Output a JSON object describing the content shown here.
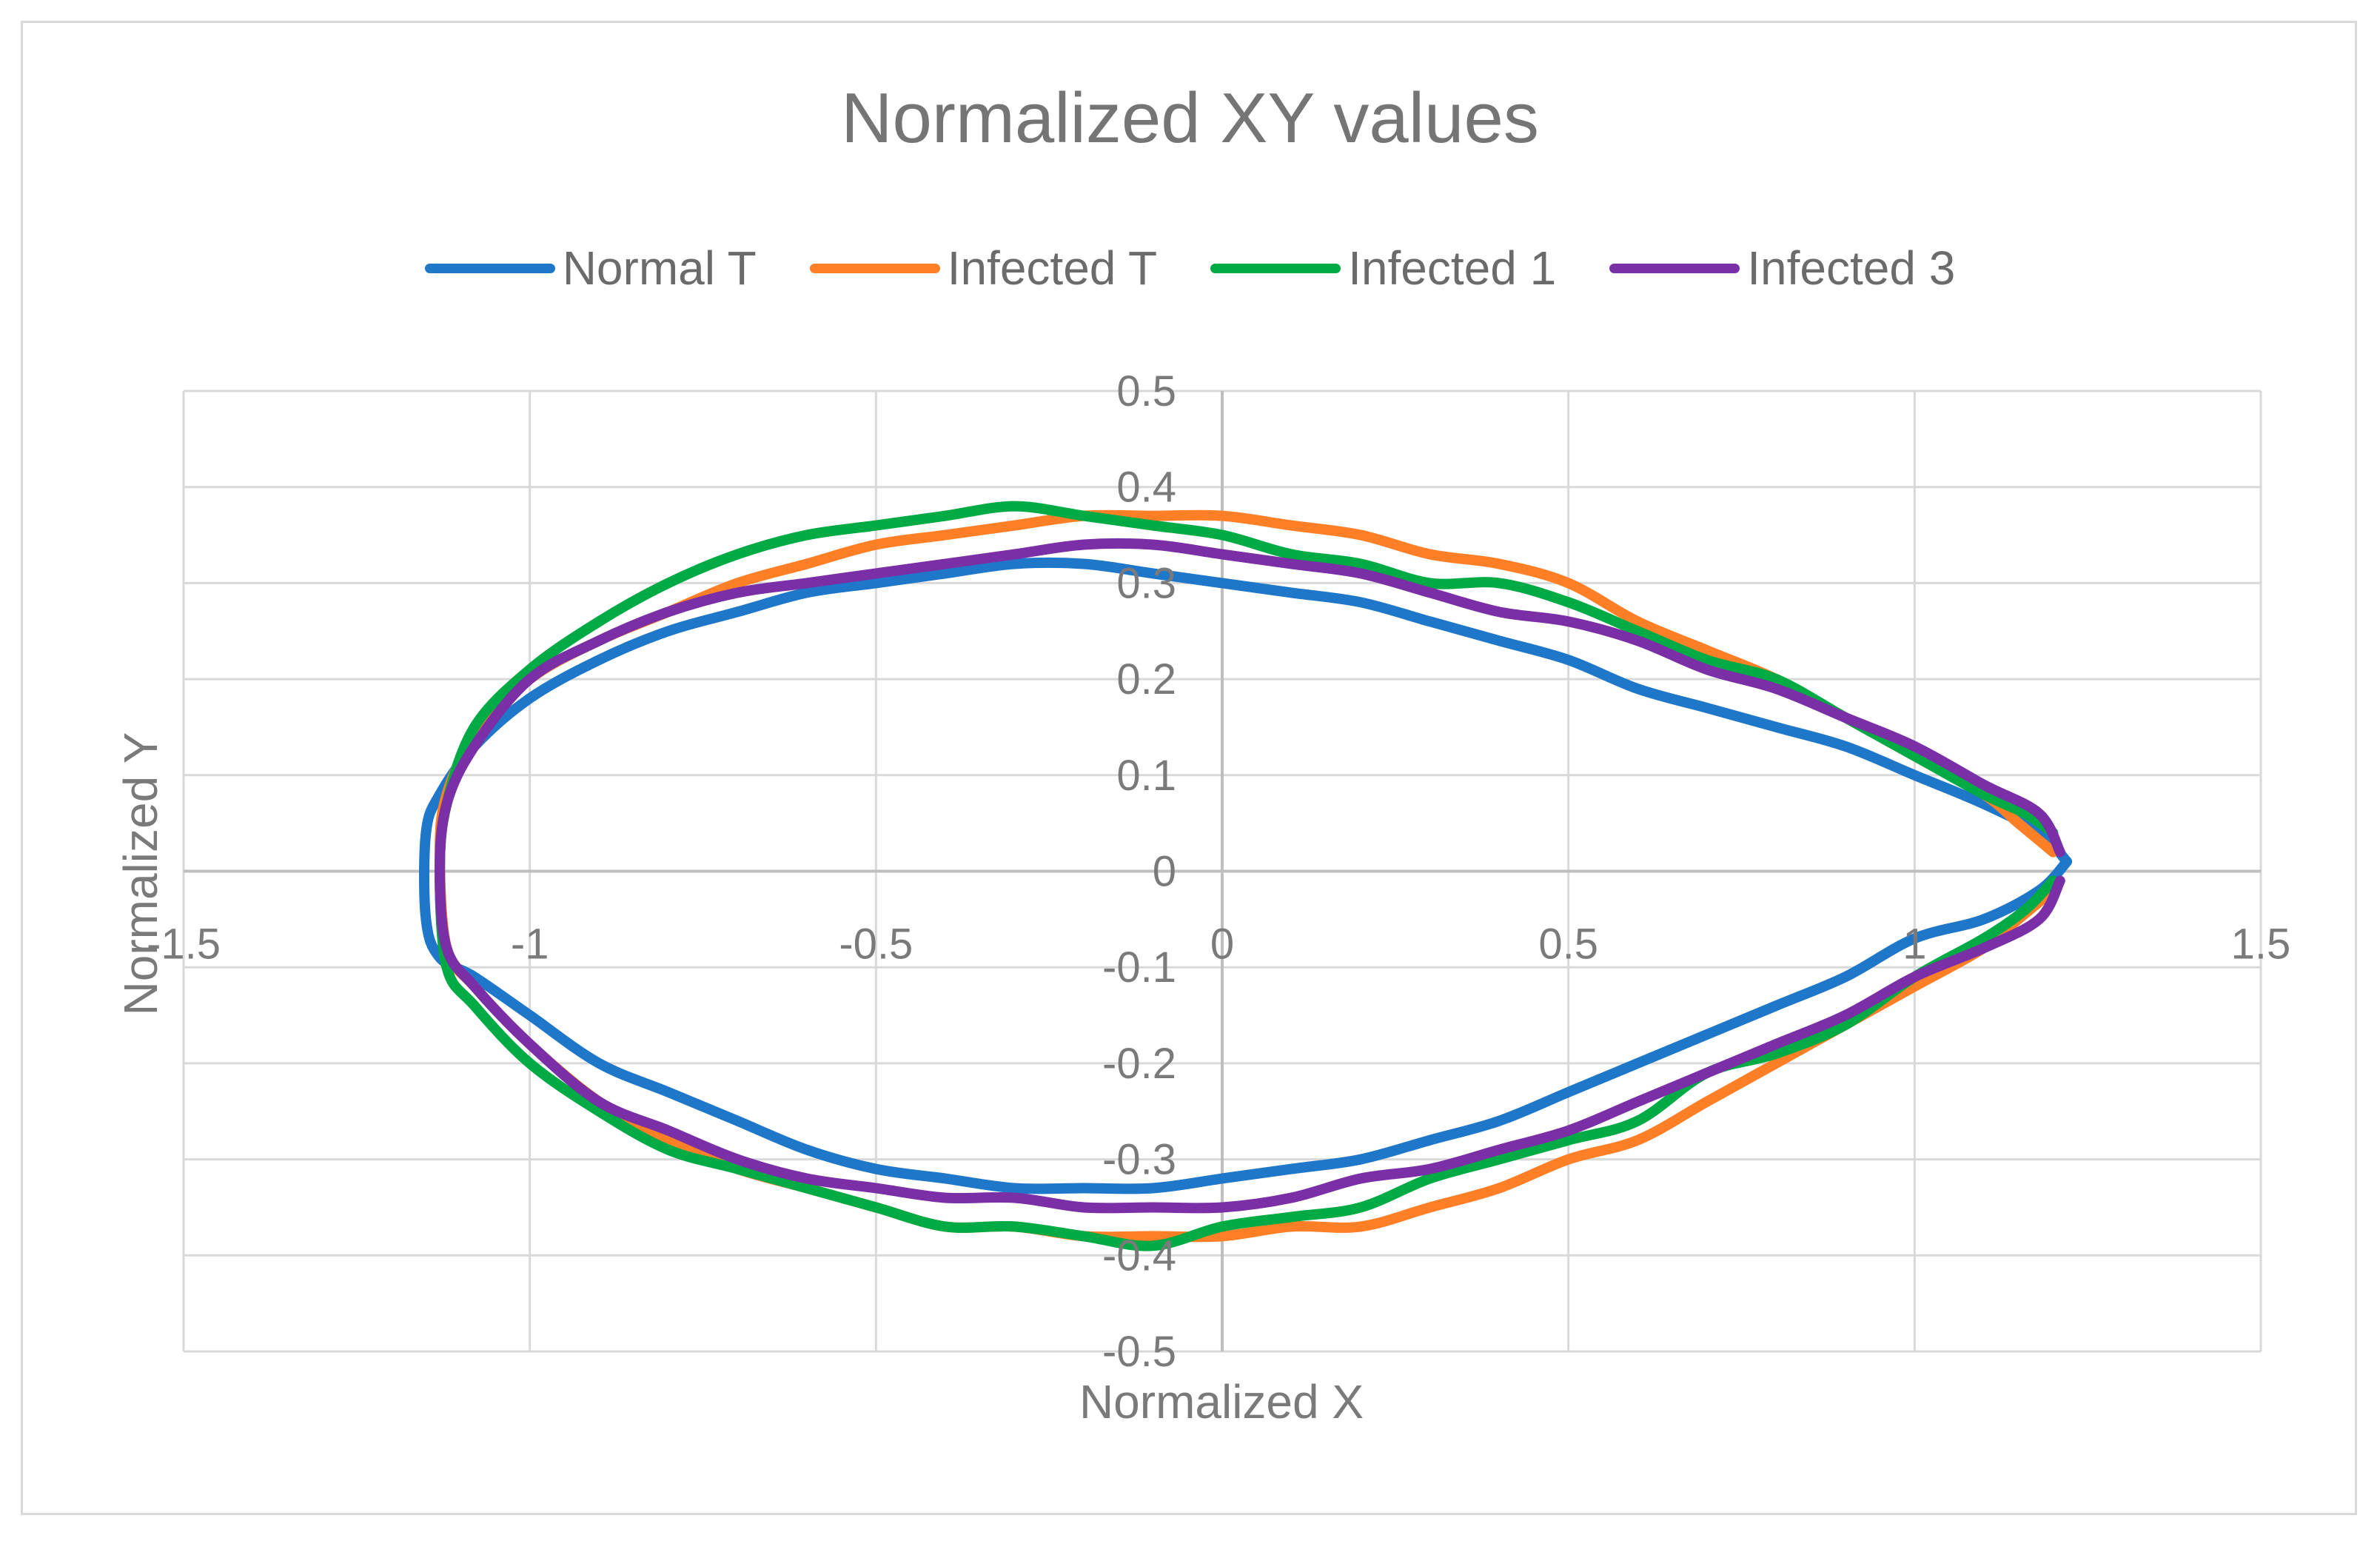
{
  "chart_data": {
    "type": "scatter",
    "title": "Normalized XY values",
    "xlabel": "Normalized X",
    "ylabel": "Normalized Y",
    "xlim": [
      -1.5,
      1.5
    ],
    "ylim": [
      -0.5,
      0.5
    ],
    "xticks": [
      -1.5,
      -1,
      -0.5,
      0,
      0.5,
      1,
      1.5
    ],
    "yticks": [
      -0.5,
      -0.4,
      -0.3,
      -0.2,
      -0.1,
      0,
      0.1,
      0.2,
      0.3,
      0.4,
      0.5
    ],
    "xtick_labels": [
      "-1.5",
      "-1",
      "-0.5",
      "0",
      "0.5",
      "1",
      "1.5"
    ],
    "ytick_labels": [
      "-0.5",
      "-0.4",
      "-0.3",
      "-0.2",
      "-0.1",
      "0",
      "0.1",
      "0.2",
      "0.3",
      "0.4",
      "0.5"
    ],
    "grid": true,
    "legend_position": "top",
    "series": [
      {
        "name": "Normal T",
        "color": "#1F77C9",
        "x": [
          1.22,
          1.18,
          1.1,
          1.0,
          0.9,
          0.8,
          0.7,
          0.6,
          0.5,
          0.4,
          0.3,
          0.2,
          0.1,
          0.0,
          -0.1,
          -0.2,
          -0.3,
          -0.4,
          -0.5,
          -0.6,
          -0.7,
          -0.8,
          -0.9,
          -1.0,
          -1.08,
          -1.13,
          -1.15,
          -1.15,
          -1.13,
          -1.08,
          -1.0,
          -0.9,
          -0.8,
          -0.7,
          -0.6,
          -0.5,
          -0.4,
          -0.3,
          -0.2,
          -0.1,
          0.0,
          0.1,
          0.2,
          0.3,
          0.4,
          0.5,
          0.6,
          0.7,
          0.8,
          0.9,
          1.0,
          1.1,
          1.18,
          1.22
        ],
        "y": [
          0.01,
          0.04,
          0.07,
          0.1,
          0.13,
          0.15,
          0.17,
          0.19,
          0.22,
          0.24,
          0.26,
          0.28,
          0.29,
          0.3,
          0.31,
          0.32,
          0.32,
          0.31,
          0.3,
          0.29,
          0.27,
          0.25,
          0.22,
          0.18,
          0.13,
          0.08,
          0.04,
          -0.05,
          -0.09,
          -0.11,
          -0.15,
          -0.2,
          -0.23,
          -0.26,
          -0.29,
          -0.31,
          -0.32,
          -0.33,
          -0.33,
          -0.33,
          -0.32,
          -0.31,
          -0.3,
          -0.28,
          -0.26,
          -0.23,
          -0.2,
          -0.17,
          -0.14,
          -0.11,
          -0.07,
          -0.05,
          -0.02,
          0.01
        ]
      },
      {
        "name": "Infected T",
        "color": "#FF7F27",
        "x": [
          1.2,
          1.15,
          1.1,
          1.0,
          0.9,
          0.8,
          0.7,
          0.6,
          0.5,
          0.4,
          0.3,
          0.2,
          0.1,
          0.0,
          -0.1,
          -0.2,
          -0.3,
          -0.4,
          -0.5,
          -0.6,
          -0.7,
          -0.8,
          -0.9,
          -1.0,
          -1.08,
          -1.12,
          -1.13,
          -1.12,
          -1.08,
          -1.0,
          -0.9,
          -0.8,
          -0.7,
          -0.6,
          -0.5,
          -0.4,
          -0.3,
          -0.2,
          -0.1,
          0.0,
          0.1,
          0.2,
          0.3,
          0.4,
          0.5,
          0.6,
          0.7,
          0.8,
          0.9,
          1.0,
          1.1,
          1.15,
          1.2
        ],
        "y": [
          0.02,
          0.05,
          0.08,
          0.12,
          0.16,
          0.2,
          0.23,
          0.26,
          0.3,
          0.32,
          0.33,
          0.35,
          0.36,
          0.37,
          0.37,
          0.37,
          0.36,
          0.35,
          0.34,
          0.32,
          0.3,
          0.27,
          0.24,
          0.2,
          0.14,
          0.08,
          0.02,
          -0.08,
          -0.12,
          -0.18,
          -0.24,
          -0.28,
          -0.31,
          -0.33,
          -0.35,
          -0.37,
          -0.37,
          -0.38,
          -0.38,
          -0.38,
          -0.37,
          -0.37,
          -0.35,
          -0.33,
          -0.3,
          -0.28,
          -0.24,
          -0.2,
          -0.16,
          -0.12,
          -0.08,
          -0.05,
          -0.02
        ]
      },
      {
        "name": "Infected 1",
        "color": "#00AA44",
        "x": [
          1.2,
          1.16,
          1.1,
          1.0,
          0.9,
          0.8,
          0.7,
          0.6,
          0.5,
          0.4,
          0.3,
          0.2,
          0.1,
          0.0,
          -0.1,
          -0.2,
          -0.3,
          -0.4,
          -0.5,
          -0.6,
          -0.7,
          -0.8,
          -0.9,
          -1.0,
          -1.08,
          -1.12,
          -1.13,
          -1.12,
          -1.08,
          -1.0,
          -0.9,
          -0.8,
          -0.7,
          -0.6,
          -0.5,
          -0.4,
          -0.3,
          -0.2,
          -0.1,
          0.0,
          0.1,
          0.2,
          0.3,
          0.4,
          0.5,
          0.6,
          0.7,
          0.8,
          0.9,
          1.0,
          1.1,
          1.16,
          1.2
        ],
        "y": [
          0.04,
          0.06,
          0.08,
          0.12,
          0.16,
          0.2,
          0.22,
          0.25,
          0.28,
          0.3,
          0.3,
          0.32,
          0.33,
          0.35,
          0.36,
          0.37,
          0.38,
          0.37,
          0.36,
          0.35,
          0.33,
          0.3,
          0.26,
          0.21,
          0.15,
          0.07,
          0.0,
          -0.1,
          -0.14,
          -0.2,
          -0.25,
          -0.29,
          -0.31,
          -0.33,
          -0.35,
          -0.37,
          -0.37,
          -0.38,
          -0.39,
          -0.37,
          -0.36,
          -0.35,
          -0.32,
          -0.3,
          -0.28,
          -0.26,
          -0.21,
          -0.19,
          -0.16,
          -0.11,
          -0.07,
          -0.04,
          -0.01
        ]
      },
      {
        "name": "Infected 3",
        "color": "#7A2FA6",
        "x": [
          1.21,
          1.18,
          1.1,
          1.0,
          0.9,
          0.8,
          0.7,
          0.6,
          0.5,
          0.4,
          0.3,
          0.2,
          0.1,
          0.0,
          -0.1,
          -0.2,
          -0.3,
          -0.4,
          -0.5,
          -0.6,
          -0.7,
          -0.8,
          -0.9,
          -1.0,
          -1.08,
          -1.12,
          -1.13,
          -1.12,
          -1.08,
          -1.0,
          -0.9,
          -0.8,
          -0.7,
          -0.6,
          -0.5,
          -0.4,
          -0.3,
          -0.2,
          -0.1,
          0.0,
          0.1,
          0.2,
          0.3,
          0.4,
          0.5,
          0.6,
          0.7,
          0.8,
          0.9,
          1.0,
          1.1,
          1.18,
          1.21
        ],
        "y": [
          0.02,
          0.06,
          0.09,
          0.13,
          0.16,
          0.19,
          0.21,
          0.24,
          0.26,
          0.27,
          0.29,
          0.31,
          0.32,
          0.33,
          0.34,
          0.34,
          0.33,
          0.32,
          0.31,
          0.3,
          0.29,
          0.27,
          0.24,
          0.2,
          0.13,
          0.07,
          0.0,
          -0.08,
          -0.12,
          -0.18,
          -0.24,
          -0.27,
          -0.3,
          -0.32,
          -0.33,
          -0.34,
          -0.34,
          -0.35,
          -0.35,
          -0.35,
          -0.34,
          -0.32,
          -0.31,
          -0.29,
          -0.27,
          -0.24,
          -0.21,
          -0.18,
          -0.15,
          -0.11,
          -0.08,
          -0.05,
          -0.01
        ]
      }
    ]
  }
}
